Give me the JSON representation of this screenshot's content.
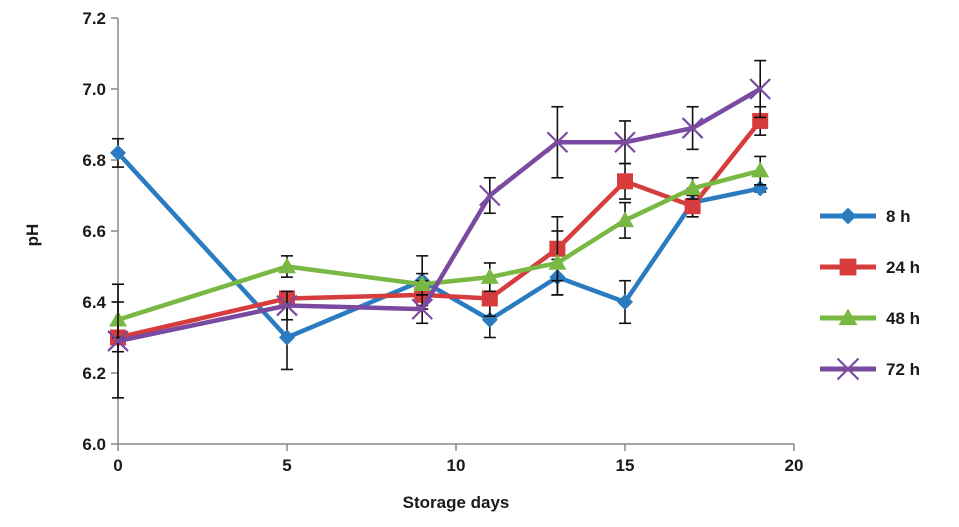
{
  "chart_data": {
    "type": "line",
    "title": "",
    "xlabel": "Storage days",
    "ylabel": "pH",
    "xlim": [
      0,
      20
    ],
    "ylim": [
      6.0,
      7.2
    ],
    "xticks": [
      0,
      5,
      10,
      15,
      20
    ],
    "yticks": [
      "6.0",
      "6.2",
      "6.4",
      "6.6",
      "6.8",
      "7.0",
      "7.2"
    ],
    "grid": false,
    "legend_position": "right",
    "series": [
      {
        "name": "8 h",
        "color": "#2a7bbf",
        "marker": "diamond",
        "points": [
          {
            "x": 0,
            "y": 6.82,
            "err": 0.04
          },
          {
            "x": 5,
            "y": 6.3,
            "err": 0.09
          },
          {
            "x": 9,
            "y": 6.46,
            "err": 0.07
          },
          {
            "x": 11,
            "y": 6.35,
            "err": 0.05
          },
          {
            "x": 13,
            "y": 6.47,
            "err": 0.05
          },
          {
            "x": 15,
            "y": 6.4,
            "err": 0.06
          },
          {
            "x": 17,
            "y": 6.68,
            "err": 0.04
          },
          {
            "x": 19,
            "y": 6.72,
            "err": 0.01
          }
        ]
      },
      {
        "name": "24 h",
        "color": "#d63c3c",
        "marker": "square",
        "points": [
          {
            "x": 0,
            "y": 6.3,
            "err": 0.04
          },
          {
            "x": 5,
            "y": 6.41,
            "err": 0.02
          },
          {
            "x": 9,
            "y": 6.42,
            "err": 0.04
          },
          {
            "x": 11,
            "y": 6.41,
            "err": 0.05
          },
          {
            "x": 13,
            "y": 6.55,
            "err": 0.09
          },
          {
            "x": 15,
            "y": 6.74,
            "err": 0.05
          },
          {
            "x": 17,
            "y": 6.67,
            "err": 0.03
          },
          {
            "x": 19,
            "y": 6.91,
            "err": 0.04
          }
        ]
      },
      {
        "name": "48 h",
        "color": "#78b843",
        "marker": "triangle",
        "points": [
          {
            "x": 0,
            "y": 6.35,
            "err": 0.05
          },
          {
            "x": 5,
            "y": 6.5,
            "err": 0.03
          },
          {
            "x": 9,
            "y": 6.45,
            "err": 0.03
          },
          {
            "x": 11,
            "y": 6.47,
            "err": 0.04
          },
          {
            "x": 13,
            "y": 6.51,
            "err": 0.09
          },
          {
            "x": 15,
            "y": 6.63,
            "err": 0.05
          },
          {
            "x": 17,
            "y": 6.72,
            "err": 0.03
          },
          {
            "x": 19,
            "y": 6.77,
            "err": 0.04
          }
        ]
      },
      {
        "name": "72 h",
        "color": "#7a4aa0",
        "marker": "x",
        "points": [
          {
            "x": 0,
            "y": 6.29,
            "err": 0.16
          },
          {
            "x": 5,
            "y": 6.39,
            "err": 0.04
          },
          {
            "x": 9,
            "y": 6.38,
            "err": 0.04
          },
          {
            "x": 11,
            "y": 6.7,
            "err": 0.05
          },
          {
            "x": 13,
            "y": 6.85,
            "err": 0.1
          },
          {
            "x": 15,
            "y": 6.85,
            "err": 0.06
          },
          {
            "x": 17,
            "y": 6.89,
            "err": 0.06
          },
          {
            "x": 19,
            "y": 7.0,
            "err": 0.08
          }
        ]
      }
    ]
  }
}
